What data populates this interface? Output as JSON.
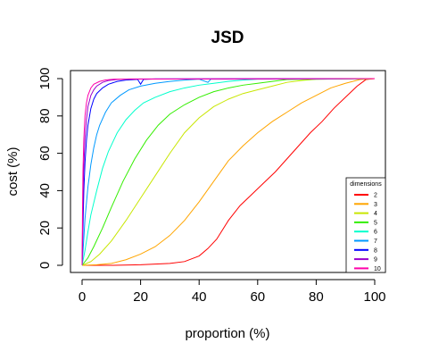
{
  "chart_data": {
    "type": "line",
    "title": "JSD",
    "xlabel": "proportion (%)",
    "ylabel": "cost (%)",
    "xlim": [
      0,
      100
    ],
    "ylim": [
      0,
      100
    ],
    "x_ticks": [
      "0",
      "20",
      "40",
      "60",
      "80",
      "100"
    ],
    "y_ticks": [
      "0",
      "20",
      "40",
      "60",
      "80",
      "100"
    ],
    "grid": false,
    "legend": {
      "title": "dimensions",
      "position": "bottom-right"
    },
    "series": [
      {
        "name": "2",
        "color": "#ff0000",
        "points": [
          [
            0,
            0
          ],
          [
            10,
            0
          ],
          [
            20,
            0.3
          ],
          [
            30,
            1
          ],
          [
            35,
            2
          ],
          [
            40,
            5
          ],
          [
            43,
            9
          ],
          [
            46,
            14
          ],
          [
            50,
            24
          ],
          [
            54,
            32
          ],
          [
            58,
            38
          ],
          [
            62,
            44
          ],
          [
            66,
            50
          ],
          [
            70,
            57
          ],
          [
            74,
            64
          ],
          [
            78,
            71
          ],
          [
            82,
            77
          ],
          [
            86,
            84
          ],
          [
            90,
            90
          ],
          [
            94,
            96
          ],
          [
            97,
            99.5
          ],
          [
            100,
            100
          ]
        ]
      },
      {
        "name": "3",
        "color": "#ffa500",
        "points": [
          [
            0,
            0
          ],
          [
            5,
            0.3
          ],
          [
            10,
            1
          ],
          [
            15,
            3
          ],
          [
            20,
            6
          ],
          [
            25,
            10
          ],
          [
            30,
            16
          ],
          [
            35,
            24
          ],
          [
            40,
            34
          ],
          [
            45,
            45
          ],
          [
            50,
            56
          ],
          [
            55,
            64
          ],
          [
            60,
            71
          ],
          [
            65,
            77
          ],
          [
            70,
            82
          ],
          [
            75,
            87
          ],
          [
            80,
            91
          ],
          [
            85,
            95
          ],
          [
            90,
            97.5
          ],
          [
            95,
            99.5
          ],
          [
            100,
            100
          ]
        ]
      },
      {
        "name": "4",
        "color": "#c8e600",
        "points": [
          [
            0,
            0
          ],
          [
            3,
            2
          ],
          [
            6,
            6
          ],
          [
            10,
            13
          ],
          [
            15,
            24
          ],
          [
            20,
            36
          ],
          [
            25,
            48
          ],
          [
            30,
            60
          ],
          [
            35,
            71
          ],
          [
            40,
            79
          ],
          [
            45,
            85
          ],
          [
            50,
            89
          ],
          [
            55,
            92
          ],
          [
            60,
            94
          ],
          [
            65,
            96
          ],
          [
            70,
            98
          ],
          [
            75,
            99
          ],
          [
            80,
            99.7
          ],
          [
            100,
            100
          ]
        ]
      },
      {
        "name": "5",
        "color": "#33ee00",
        "points": [
          [
            0,
            0
          ],
          [
            2,
            4
          ],
          [
            4,
            10
          ],
          [
            7,
            20
          ],
          [
            10,
            31
          ],
          [
            14,
            45
          ],
          [
            18,
            57
          ],
          [
            22,
            67
          ],
          [
            26,
            75
          ],
          [
            30,
            81
          ],
          [
            35,
            86
          ],
          [
            40,
            90
          ],
          [
            45,
            93
          ],
          [
            50,
            95
          ],
          [
            55,
            96.5
          ],
          [
            60,
            97.5
          ],
          [
            65,
            98.5
          ],
          [
            70,
            99.5
          ],
          [
            100,
            100
          ]
        ]
      },
      {
        "name": "6",
        "color": "#00ffcc",
        "points": [
          [
            0,
            0
          ],
          [
            1,
            8
          ],
          [
            2,
            18
          ],
          [
            3,
            27
          ],
          [
            5,
            40
          ],
          [
            7,
            52
          ],
          [
            9,
            61
          ],
          [
            12,
            71
          ],
          [
            15,
            78
          ],
          [
            18,
            83
          ],
          [
            21,
            87
          ],
          [
            25,
            90
          ],
          [
            30,
            93
          ],
          [
            35,
            95
          ],
          [
            40,
            96.5
          ],
          [
            45,
            97.5
          ],
          [
            50,
            98.5
          ],
          [
            55,
            99.2
          ],
          [
            60,
            99.7
          ],
          [
            100,
            100
          ]
        ]
      },
      {
        "name": "7",
        "color": "#0099ff",
        "points": [
          [
            0,
            0
          ],
          [
            0.5,
            12
          ],
          [
            1,
            25
          ],
          [
            2,
            42
          ],
          [
            3,
            54
          ],
          [
            4,
            63
          ],
          [
            5,
            70
          ],
          [
            6,
            75
          ],
          [
            8,
            82
          ],
          [
            10,
            87
          ],
          [
            13,
            91
          ],
          [
            16,
            94
          ],
          [
            20,
            96
          ],
          [
            25,
            97.5
          ],
          [
            30,
            98.5
          ],
          [
            35,
            99.2
          ],
          [
            40,
            99.7
          ],
          [
            43,
            98
          ],
          [
            44,
            99.7
          ],
          [
            100,
            100
          ]
        ]
      },
      {
        "name": "8",
        "color": "#0000ff",
        "points": [
          [
            0,
            0
          ],
          [
            0.3,
            20
          ],
          [
            0.6,
            40
          ],
          [
            1,
            55
          ],
          [
            1.5,
            67
          ],
          [
            2,
            75
          ],
          [
            3,
            84
          ],
          [
            4,
            89
          ],
          [
            5,
            92
          ],
          [
            7,
            95
          ],
          [
            9,
            97
          ],
          [
            12,
            98.5
          ],
          [
            15,
            99.2
          ],
          [
            19,
            99.6
          ],
          [
            20,
            97
          ],
          [
            21,
            99.6
          ],
          [
            25,
            99.8
          ],
          [
            100,
            100
          ]
        ]
      },
      {
        "name": "9",
        "color": "#9900cc",
        "points": [
          [
            0,
            0
          ],
          [
            0.2,
            25
          ],
          [
            0.5,
            50
          ],
          [
            1,
            68
          ],
          [
            1.5,
            78
          ],
          [
            2,
            85
          ],
          [
            3,
            91
          ],
          [
            4,
            94
          ],
          [
            5,
            96
          ],
          [
            7,
            98
          ],
          [
            9,
            99
          ],
          [
            12,
            99.5
          ],
          [
            16,
            99.8
          ],
          [
            100,
            100
          ]
        ]
      },
      {
        "name": "10",
        "color": "#ff00aa",
        "points": [
          [
            0,
            0
          ],
          [
            0.15,
            30
          ],
          [
            0.3,
            50
          ],
          [
            0.6,
            68
          ],
          [
            1,
            80
          ],
          [
            1.5,
            87
          ],
          [
            2,
            91
          ],
          [
            3,
            95
          ],
          [
            4,
            97
          ],
          [
            6,
            98.5
          ],
          [
            8,
            99.3
          ],
          [
            11,
            99.7
          ],
          [
            100,
            100
          ]
        ]
      }
    ]
  }
}
